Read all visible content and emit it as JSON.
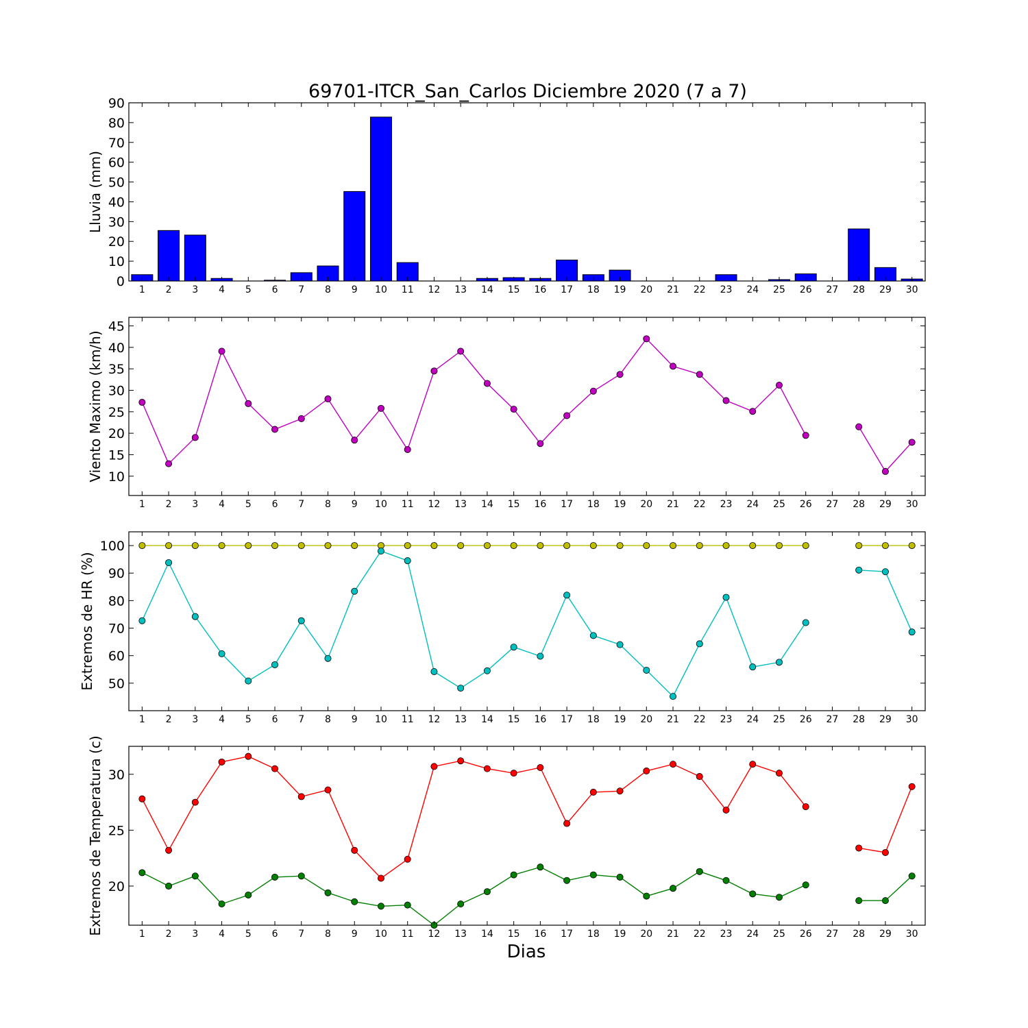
{
  "title": "69701-ITCR_San_Carlos Diciembre 2020  (7 a 7)",
  "xlabel": "Dias",
  "days": [
    1,
    2,
    3,
    4,
    5,
    6,
    7,
    8,
    9,
    10,
    11,
    12,
    13,
    14,
    15,
    16,
    17,
    18,
    19,
    20,
    21,
    22,
    23,
    24,
    25,
    26,
    27,
    28,
    29,
    30
  ],
  "chart_data": [
    {
      "type": "bar",
      "ylabel": "Lluvia (mm)",
      "ylim": [
        0,
        90
      ],
      "yticks": [
        0,
        10,
        20,
        30,
        40,
        50,
        60,
        70,
        80,
        90
      ],
      "grid": false,
      "series": [
        {
          "color": "#0000ff",
          "values": [
            3.2,
            25.5,
            23.2,
            1.3,
            0,
            0.4,
            4.2,
            7.6,
            45.2,
            82.8,
            9.3,
            0,
            0,
            1.3,
            1.7,
            1.3,
            10.6,
            3.2,
            5.5,
            0,
            0,
            0,
            3.2,
            0,
            0.7,
            3.6,
            0,
            26.3,
            6.8,
            1.0
          ]
        }
      ]
    },
    {
      "type": "line",
      "ylabel": "Viento Maximo (km/h)",
      "ylim": [
        5.5,
        47
      ],
      "yticks": [
        10,
        15,
        20,
        25,
        30,
        35,
        40,
        45
      ],
      "grid": false,
      "series": [
        {
          "color": "#bf00bf",
          "values": [
            27.2,
            12.9,
            19.0,
            39.1,
            26.9,
            20.9,
            23.4,
            28.0,
            18.4,
            25.8,
            16.2,
            34.5,
            39.1,
            31.6,
            25.6,
            17.6,
            24.1,
            29.8,
            33.7,
            42.0,
            35.6,
            33.7,
            27.6,
            25.1,
            31.2,
            19.5,
            null,
            21.5,
            11.1,
            17.9
          ]
        }
      ]
    },
    {
      "type": "line",
      "ylabel": "Extremos de HR (%)",
      "ylim": [
        40,
        105
      ],
      "yticks": [
        50,
        60,
        70,
        80,
        90,
        100
      ],
      "grid": false,
      "series": [
        {
          "color": "#bfbf00",
          "values": [
            100,
            100,
            100,
            100,
            100,
            100,
            100,
            100,
            100,
            100,
            100,
            100,
            100,
            100,
            100,
            100,
            100,
            100,
            100,
            100,
            100,
            100,
            100,
            100,
            100,
            100,
            null,
            100,
            100,
            100
          ]
        },
        {
          "color": "#00bfbf",
          "values": [
            72.7,
            93.8,
            74.2,
            60.7,
            50.8,
            56.7,
            72.7,
            59.0,
            83.4,
            98.0,
            94.5,
            54.2,
            48.2,
            54.5,
            63.1,
            59.8,
            82.0,
            67.3,
            64.0,
            54.7,
            45.2,
            64.3,
            81.2,
            55.9,
            57.6,
            72.0,
            null,
            91.1,
            90.5,
            68.6
          ]
        }
      ]
    },
    {
      "type": "line",
      "ylabel": "Extremos de Temperatura (c)",
      "ylim": [
        16.5,
        32.5
      ],
      "yticks": [
        20,
        25,
        30
      ],
      "grid": false,
      "series": [
        {
          "color": "#ff0000",
          "values": [
            27.8,
            23.2,
            27.5,
            31.1,
            31.6,
            30.5,
            28.0,
            28.6,
            23.2,
            20.7,
            22.4,
            30.7,
            31.2,
            30.5,
            30.1,
            30.6,
            25.6,
            28.4,
            28.5,
            30.3,
            30.9,
            29.8,
            26.8,
            30.9,
            30.1,
            27.1,
            null,
            23.4,
            23.0,
            28.9
          ]
        },
        {
          "color": "#007f00",
          "values": [
            21.2,
            20.0,
            20.9,
            18.4,
            19.2,
            20.8,
            20.9,
            19.4,
            18.6,
            18.2,
            18.3,
            16.5,
            18.4,
            19.5,
            21.0,
            21.7,
            20.5,
            21.0,
            20.8,
            19.1,
            19.8,
            21.3,
            20.5,
            19.3,
            19.0,
            20.1,
            null,
            18.7,
            18.7,
            20.9
          ]
        }
      ]
    }
  ]
}
